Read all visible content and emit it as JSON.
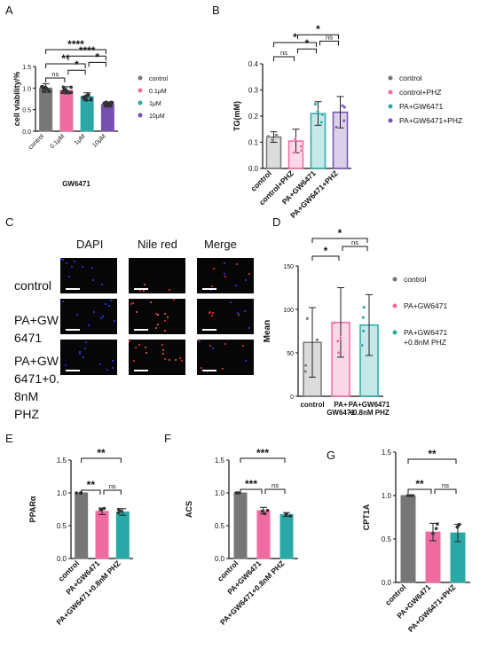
{
  "panels": {
    "A": "A",
    "B": "B",
    "C": "C",
    "D": "D",
    "E": "E",
    "F": "F",
    "G": "G"
  },
  "colors": {
    "control": "#777777",
    "pink": "#f06ba0",
    "teal": "#2aa8a8",
    "purple": "#7650b0"
  },
  "chart_data": [
    {
      "id": "A",
      "type": "bar",
      "ylabel": "cell viability/%",
      "xlabel": "GW6471",
      "categories": [
        "control",
        "0.1μM",
        "1μM",
        "10μM"
      ],
      "values": [
        1.0,
        0.95,
        0.8,
        0.62
      ],
      "errors": [
        0.1,
        0.08,
        0.09,
        0.06
      ],
      "ylim": [
        0,
        1.5
      ],
      "yticks": [
        "0.0",
        "0.5",
        "1.0",
        "1.5"
      ],
      "legend": [
        "control",
        "0.1μM",
        "1μM",
        "10μM"
      ],
      "brackets": [
        {
          "from": 0,
          "to": 1,
          "label": "ns"
        },
        {
          "from": 1,
          "to": 2,
          "label": "*"
        },
        {
          "from": 2,
          "to": 3,
          "label": "*"
        },
        {
          "from": 0,
          "to": 2,
          "label": "**"
        },
        {
          "from": 0,
          "to": 3,
          "label": "****"
        },
        {
          "from": 1,
          "to": 3,
          "label": "****"
        }
      ]
    },
    {
      "id": "B",
      "type": "bar",
      "ylabel": "TG(mM)",
      "categories": [
        "control",
        "control+PHZ",
        "PA+GW6471",
        "PA+GW6471+PHZ"
      ],
      "values": [
        0.12,
        0.105,
        0.21,
        0.215
      ],
      "errors": [
        0.02,
        0.045,
        0.045,
        0.06
      ],
      "ylim": [
        0,
        0.4
      ],
      "yticks": [
        "0.0",
        "0.1",
        "0.2",
        "0.3",
        "0.4"
      ],
      "legend": [
        "control",
        "control+PHZ",
        "PA+GW6471",
        "PA+GW6471+PHZ"
      ],
      "brackets": [
        {
          "from": 0,
          "to": 1,
          "label": "ns"
        },
        {
          "from": 1,
          "to": 2,
          "label": "*"
        },
        {
          "from": 2,
          "to": 3,
          "label": "ns"
        },
        {
          "from": 0,
          "to": 2,
          "label": "*"
        },
        {
          "from": 1,
          "to": 3,
          "label": "*"
        }
      ]
    },
    {
      "id": "D",
      "type": "bar",
      "ylabel": "Mean",
      "categories": [
        "control",
        "PA+ GW6471",
        "PA+GW6471 +0.8nM PHZ"
      ],
      "values": [
        62,
        85,
        82
      ],
      "errors": [
        40,
        40,
        35
      ],
      "ylim": [
        0,
        150
      ],
      "yticks": [
        "0",
        "50",
        "100",
        "150"
      ],
      "legend": [
        "control",
        "PA+GW6471",
        "PA+GW6471 +0.8nM PHZ"
      ],
      "brackets": [
        {
          "from": 0,
          "to": 1,
          "label": "*"
        },
        {
          "from": 1,
          "to": 2,
          "label": "ns"
        },
        {
          "from": 0,
          "to": 2,
          "label": "*"
        }
      ]
    },
    {
      "id": "E",
      "type": "bar",
      "ylabel": "PPARα",
      "categories": [
        "control",
        "PA+GW6471",
        "PA+GW6471+0.8nM PHZ"
      ],
      "values": [
        1.0,
        0.72,
        0.71
      ],
      "errors": [
        0.0,
        0.05,
        0.05
      ],
      "ylim": [
        0,
        1.5
      ],
      "yticks": [
        "0.0",
        "0.5",
        "1.0",
        "1.5"
      ],
      "brackets": [
        {
          "from": 0,
          "to": 1,
          "label": "**"
        },
        {
          "from": 1,
          "to": 2,
          "label": "ns"
        },
        {
          "from": 0,
          "to": 2,
          "label": "**"
        }
      ]
    },
    {
      "id": "F",
      "type": "bar",
      "ylabel": "ACS",
      "categories": [
        "control",
        "PA+GW6471",
        "PA+GW6471+0.8nM PHZ"
      ],
      "values": [
        1.0,
        0.73,
        0.67
      ],
      "errors": [
        0.0,
        0.05,
        0.03
      ],
      "ylim": [
        0,
        1.5
      ],
      "yticks": [
        "0.0",
        "0.5",
        "1.0",
        "1.5"
      ],
      "brackets": [
        {
          "from": 0,
          "to": 1,
          "label": "***"
        },
        {
          "from": 1,
          "to": 2,
          "label": "ns"
        },
        {
          "from": 0,
          "to": 2,
          "label": "***"
        }
      ]
    },
    {
      "id": "G",
      "type": "bar",
      "ylabel": "CPT1A",
      "categories": [
        "control",
        "PA+GW6471",
        "PA+GW6471+PHZ"
      ],
      "values": [
        1.0,
        0.58,
        0.57
      ],
      "errors": [
        0.0,
        0.1,
        0.1
      ],
      "ylim": [
        0,
        1.5
      ],
      "yticks": [
        "0.0",
        "0.5",
        "1.0",
        "1.5"
      ],
      "brackets": [
        {
          "from": 0,
          "to": 1,
          "label": "**"
        },
        {
          "from": 1,
          "to": 2,
          "label": "ns"
        },
        {
          "from": 0,
          "to": 2,
          "label": "**"
        }
      ]
    }
  ],
  "micrograph": {
    "columns": [
      "DAPI",
      "Nile red",
      "Merge"
    ],
    "rows": [
      "control",
      "PA+GW 6471",
      "PA+GW 6471+0. 8nM PHZ"
    ]
  }
}
